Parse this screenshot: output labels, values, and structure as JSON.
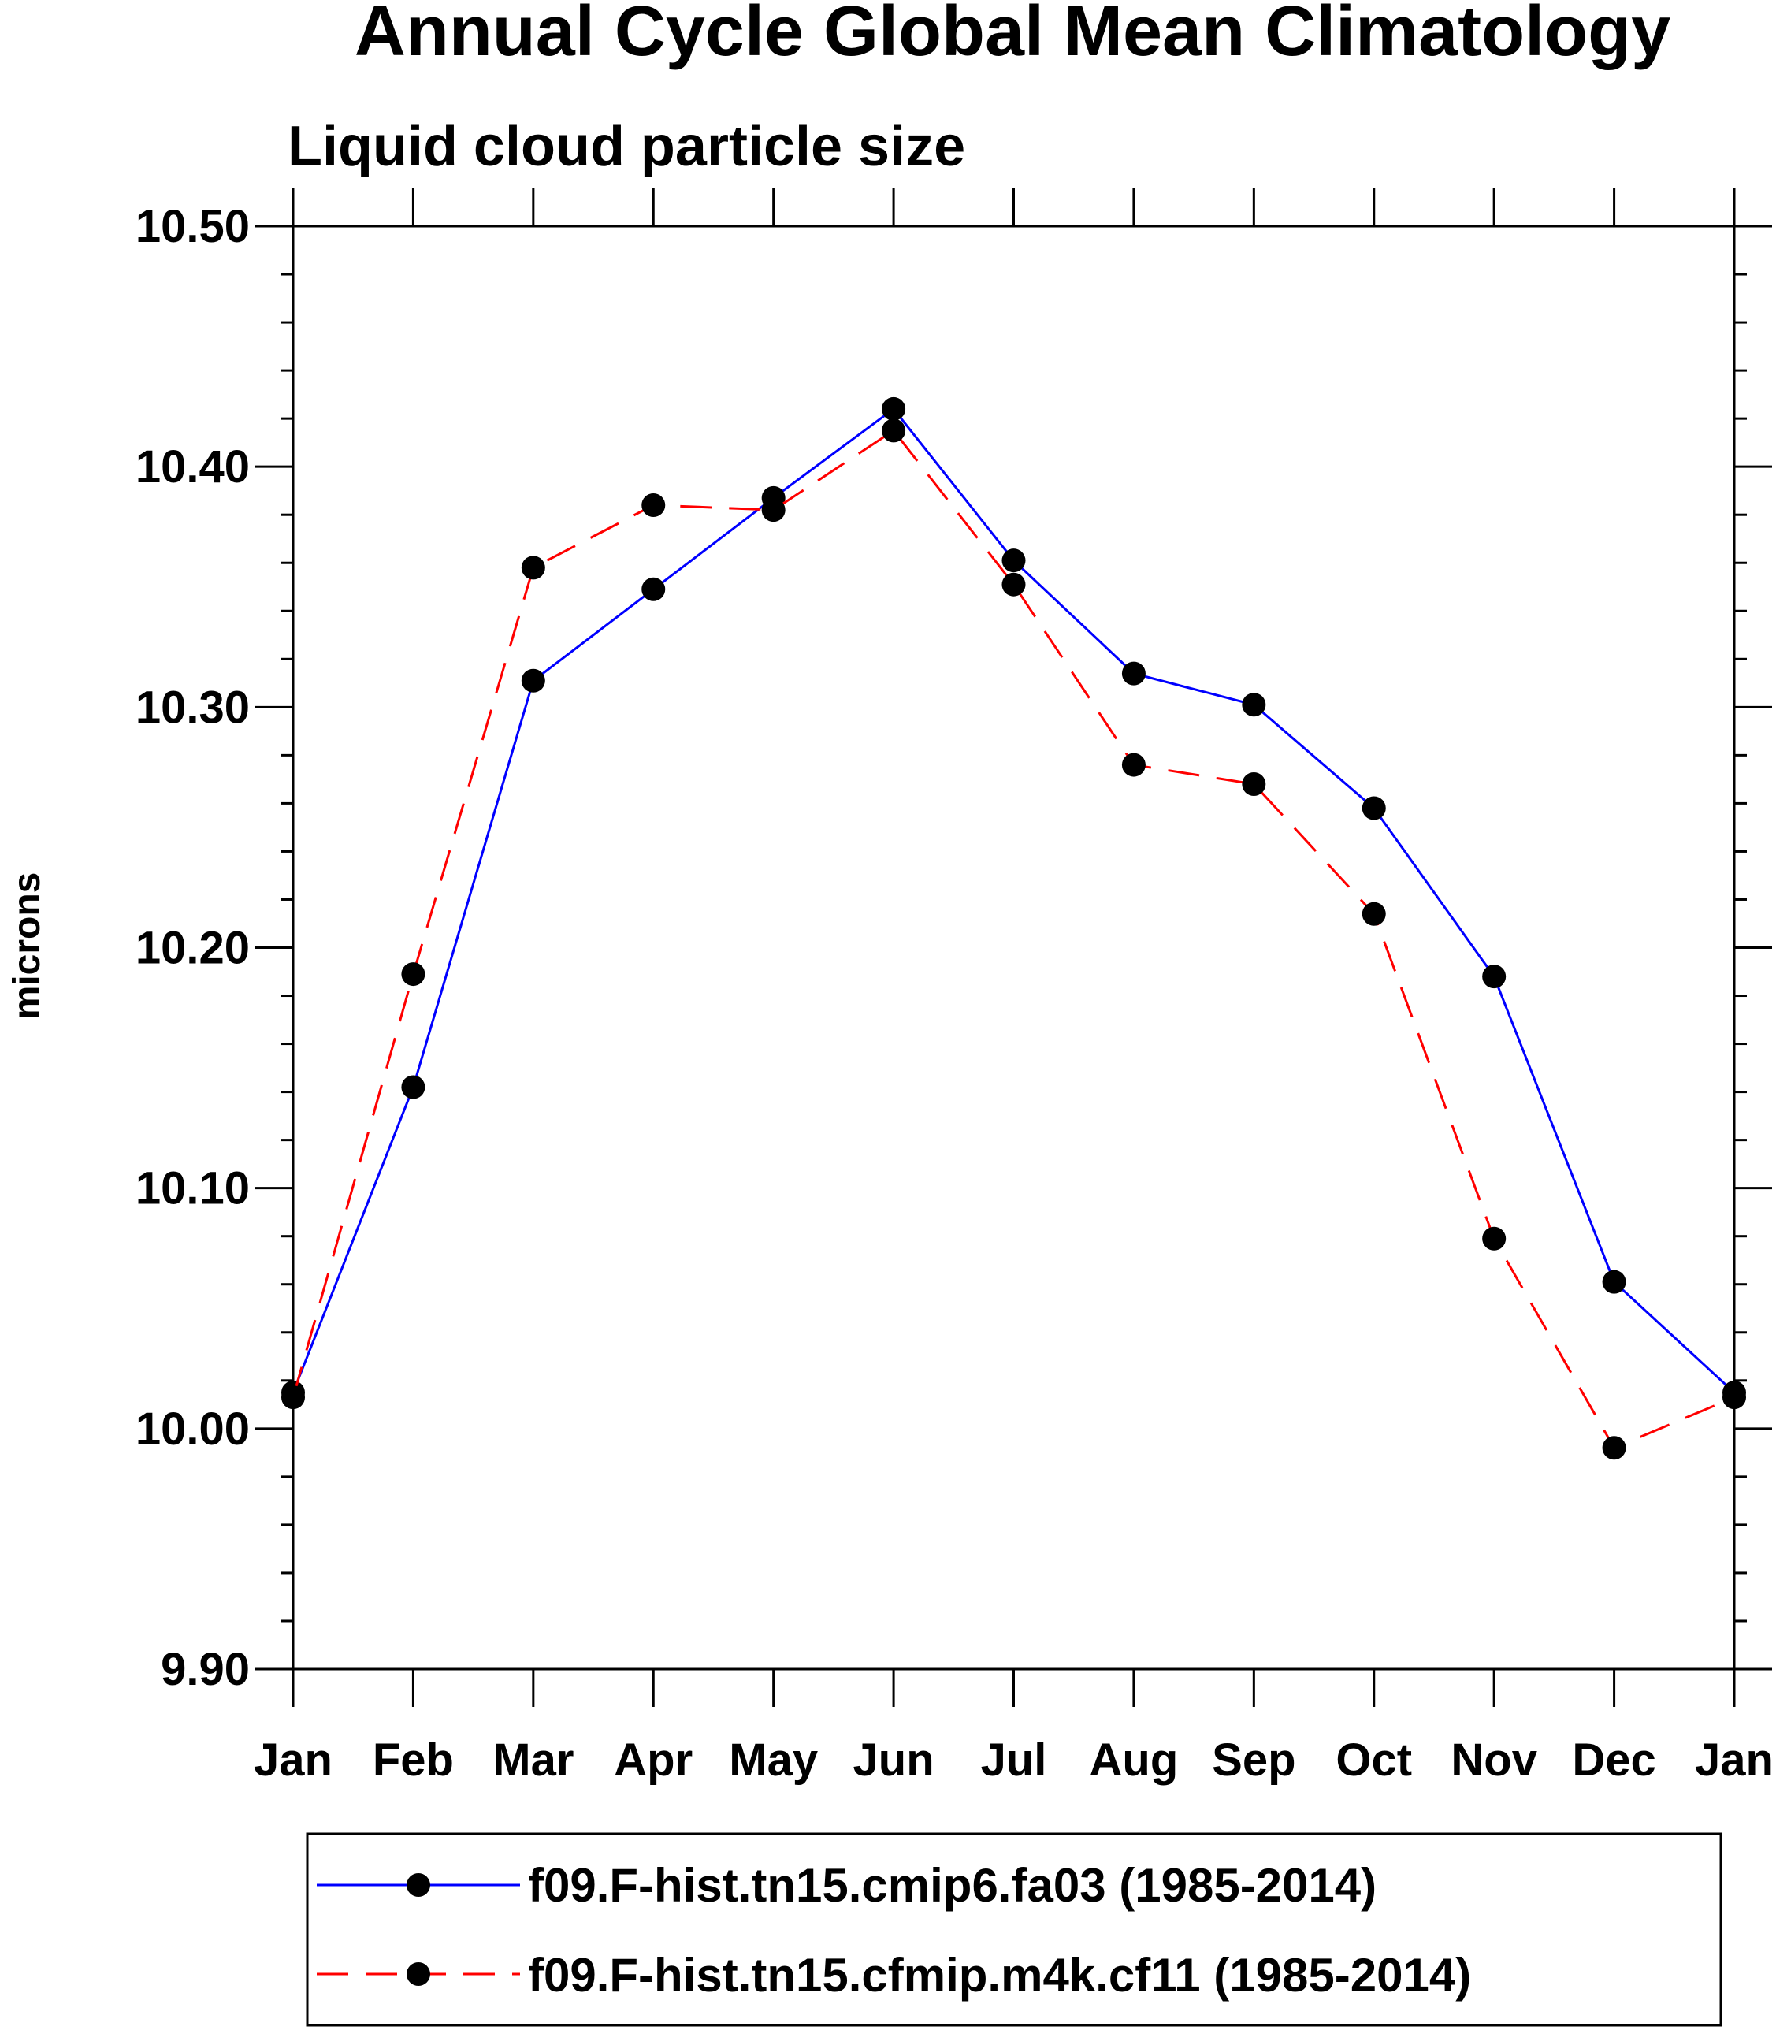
{
  "chart_data": {
    "type": "line",
    "title": "Annual Cycle Global Mean Climatology",
    "subtitle": "Liquid cloud particle size",
    "xlabel": "",
    "ylabel": "microns",
    "categories": [
      "Jan",
      "Feb",
      "Mar",
      "Apr",
      "May",
      "Jun",
      "Jul",
      "Aug",
      "Sep",
      "Oct",
      "Nov",
      "Dec",
      "Jan"
    ],
    "ylim": [
      9.9,
      10.5
    ],
    "yticks": [
      "9.90",
      "10.00",
      "10.10",
      "10.20",
      "10.30",
      "10.40",
      "10.50"
    ],
    "grid": false,
    "legend_position": "bottom",
    "series": [
      {
        "name": "f09.F-hist.tn15.cmip6.fa03 (1985-2014)",
        "color": "#0000ff",
        "style": "solid",
        "marker": "filled-circle",
        "values": [
          10.015,
          10.142,
          10.311,
          10.349,
          10.387,
          10.424,
          10.361,
          10.314,
          10.301,
          10.258,
          10.188,
          10.061,
          10.015
        ]
      },
      {
        "name": "f09.F-hist.tn15.cfmip.m4k.cf11 (1985-2014)",
        "color": "#ff0000",
        "style": "dashed",
        "marker": "filled-circle",
        "values": [
          10.013,
          10.189,
          10.358,
          10.384,
          10.382,
          10.415,
          10.351,
          10.276,
          10.268,
          10.214,
          10.079,
          9.992,
          10.013
        ]
      }
    ]
  }
}
